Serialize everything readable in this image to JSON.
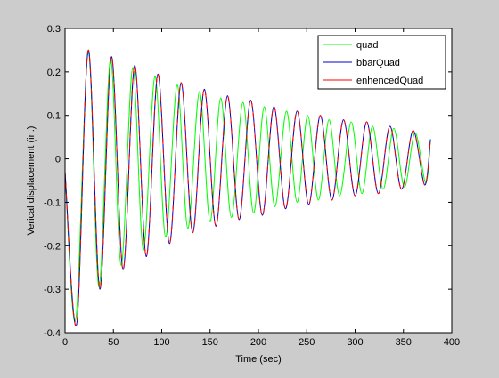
{
  "chart_data": {
    "type": "line",
    "xlabel": "Time (sec)",
    "ylabel": "Verical displacement (in.)",
    "xlim": [
      0,
      400
    ],
    "ylim": [
      -0.4,
      0.3
    ],
    "xticks": [
      0,
      50,
      100,
      150,
      200,
      250,
      300,
      350,
      400
    ],
    "yticks": [
      -0.4,
      -0.3,
      -0.2,
      -0.1,
      0,
      0.1,
      0.2,
      0.3
    ],
    "xtick_labels": [
      "0",
      "50",
      "100",
      "150",
      "200",
      "250",
      "300",
      "350",
      "400"
    ],
    "ytick_labels": [
      "-0.4",
      "-0.3",
      "-0.2",
      "-0.1",
      "0",
      "0.1",
      "0.2",
      "0.3"
    ],
    "grid": false,
    "legend_position": "top-right",
    "series": [
      {
        "name": "quad",
        "color": "#00ff00",
        "x": [
          0,
          11,
          24,
          35,
          47,
          58,
          70,
          81,
          93,
          104,
          116,
          127,
          139,
          150,
          161,
          172,
          184,
          195,
          206,
          217,
          229,
          240,
          251,
          262,
          273,
          284,
          296,
          307,
          318,
          329,
          340,
          351,
          362,
          373,
          378
        ],
        "y": [
          -0.03,
          -0.37,
          0.245,
          -0.295,
          0.23,
          -0.245,
          0.21,
          -0.21,
          0.19,
          -0.18,
          0.17,
          -0.16,
          0.155,
          -0.145,
          0.14,
          -0.135,
          0.13,
          -0.125,
          0.12,
          -0.11,
          0.11,
          -0.1,
          0.1,
          -0.095,
          0.09,
          -0.085,
          0.085,
          -0.08,
          0.075,
          -0.07,
          0.07,
          -0.065,
          0.06,
          -0.055,
          0.045
        ]
      },
      {
        "name": "bbarQuad",
        "color": "#0000cc",
        "x": [
          0,
          12,
          24,
          36,
          48,
          60,
          72,
          84,
          96,
          108,
          120,
          132,
          144,
          156,
          168,
          180,
          192,
          204,
          216,
          228,
          240,
          252,
          264,
          276,
          288,
          300,
          312,
          324,
          336,
          348,
          360,
          372,
          378
        ],
        "y": [
          -0.03,
          -0.38,
          0.25,
          -0.3,
          0.235,
          -0.255,
          0.215,
          -0.225,
          0.195,
          -0.195,
          0.175,
          -0.17,
          0.16,
          -0.155,
          0.145,
          -0.14,
          0.135,
          -0.13,
          0.12,
          -0.115,
          0.11,
          -0.105,
          0.1,
          -0.095,
          0.09,
          -0.085,
          0.085,
          -0.08,
          0.075,
          -0.07,
          0.065,
          -0.06,
          0.045
        ]
      },
      {
        "name": "enhencedQuad",
        "color": "#ff0000",
        "x": [
          0,
          12,
          24,
          36,
          48,
          60,
          72,
          84,
          96,
          108,
          120,
          132,
          144,
          156,
          168,
          180,
          192,
          204,
          216,
          228,
          240,
          252,
          264,
          276,
          288,
          300,
          312,
          324,
          336,
          348,
          360,
          372,
          378
        ],
        "y": [
          -0.03,
          -0.38,
          0.25,
          -0.3,
          0.235,
          -0.255,
          0.215,
          -0.225,
          0.195,
          -0.195,
          0.175,
          -0.17,
          0.16,
          -0.155,
          0.145,
          -0.14,
          0.135,
          -0.13,
          0.12,
          -0.115,
          0.11,
          -0.105,
          0.1,
          -0.095,
          0.09,
          -0.085,
          0.085,
          -0.08,
          0.075,
          -0.07,
          0.065,
          -0.06,
          0.045
        ]
      }
    ]
  }
}
